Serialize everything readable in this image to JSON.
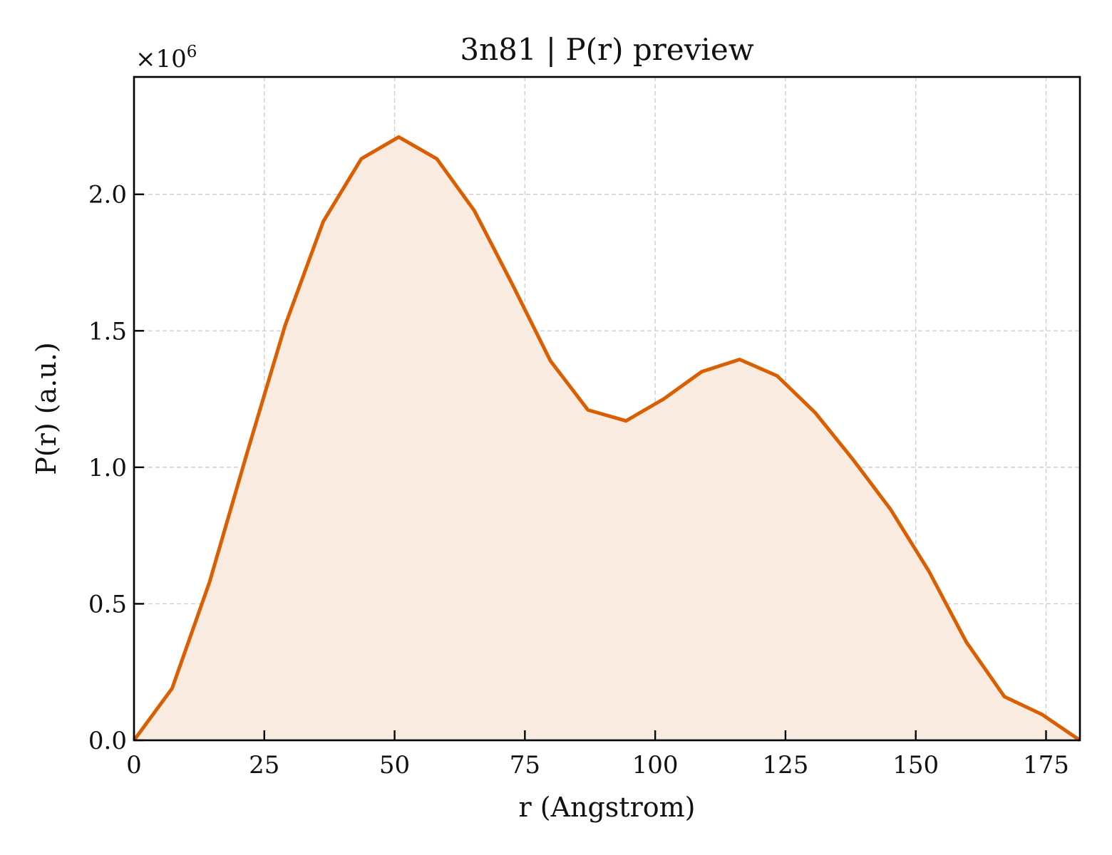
{
  "chart_data": {
    "type": "area",
    "title": "3n81 | P(r) preview",
    "xlabel": "r (Angstrom)",
    "ylabel": "P(r) (a.u.)",
    "y_multiplier_label": "×10",
    "y_multiplier_exponent": "6",
    "xlim": [
      0,
      181.5
    ],
    "ylim": [
      0,
      2.43
    ],
    "grid": true,
    "x_ticks": [
      0,
      25,
      50,
      75,
      100,
      125,
      150,
      175
    ],
    "x_tick_labels": [
      "0",
      "25",
      "50",
      "75",
      "100",
      "125",
      "150",
      "175"
    ],
    "y_ticks": [
      0,
      0.5,
      1.0,
      1.5,
      2.0
    ],
    "y_tick_labels": [
      "0.0",
      "0.5",
      "1.0",
      "1.5",
      "2.0"
    ],
    "colors": {
      "line": "#d95f02",
      "fill": "#f9ebe0"
    },
    "series": [
      {
        "x": [
          0,
          7.3,
          14.5,
          21.8,
          29.0,
          36.3,
          43.6,
          50.8,
          58.1,
          65.3,
          72.6,
          79.9,
          87.1,
          94.4,
          101.6,
          108.9,
          116.2,
          123.4,
          130.7,
          137.9,
          145.2,
          152.5,
          159.7,
          167.0,
          174.2,
          181.5
        ],
        "values": [
          0.0,
          0.19,
          0.58,
          1.06,
          1.52,
          1.9,
          2.13,
          2.21,
          2.13,
          1.94,
          1.67,
          1.39,
          1.21,
          1.17,
          1.25,
          1.35,
          1.395,
          1.335,
          1.2,
          1.03,
          0.845,
          0.62,
          0.36,
          0.16,
          0.095,
          0.0
        ]
      }
    ]
  }
}
